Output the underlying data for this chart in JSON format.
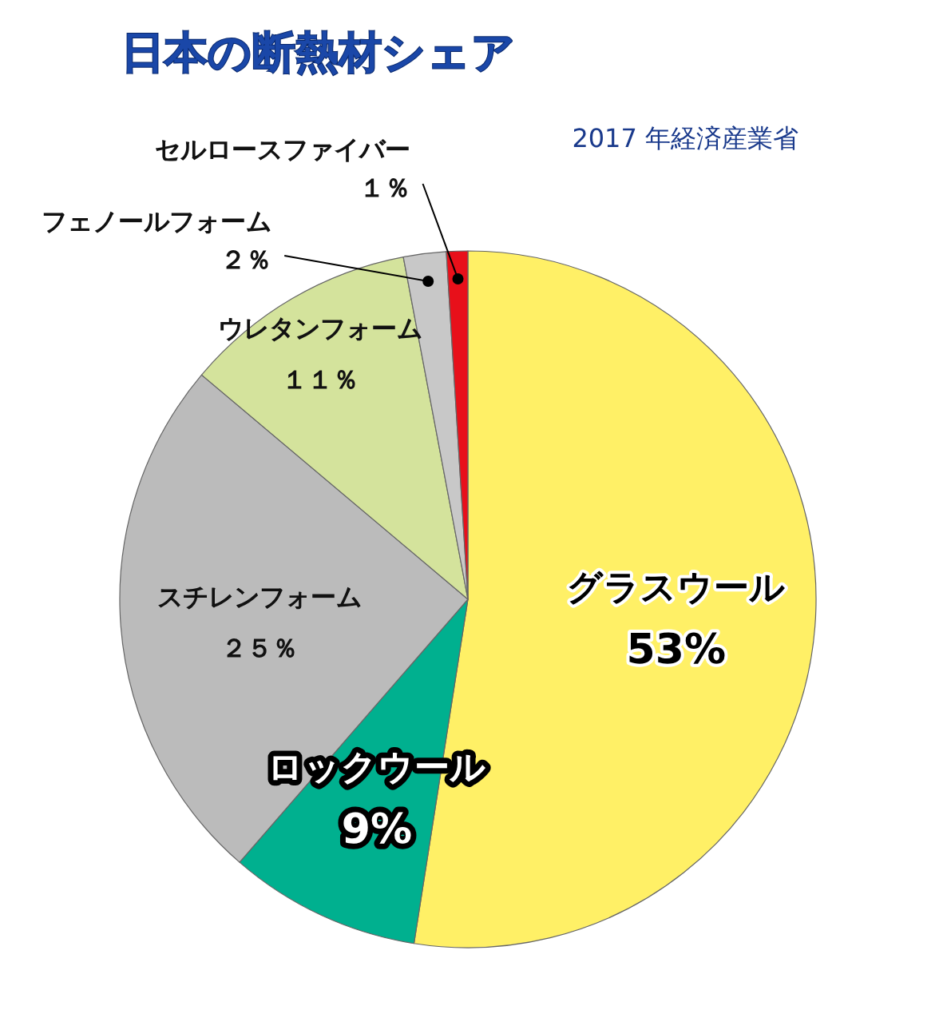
{
  "chart_data": {
    "type": "pie",
    "title": "日本の断熱材シェア",
    "annotations": [
      "2017 年経済産業省"
    ],
    "categories": [
      "グラスウール",
      "ロックウール",
      "スチレンフォーム",
      "ウレタンフォーム",
      "フェノールフォーム",
      "セルロースファイバー"
    ],
    "values": [
      53,
      9,
      25,
      11,
      2,
      1
    ],
    "value_labels": [
      "53%",
      "9%",
      "２５％",
      "１１％",
      "２％",
      "１％"
    ],
    "colors": [
      "#fff066",
      "#00b08f",
      "#bbbbbb",
      "#d4e39c",
      "#c8c8c8",
      "#e8101a"
    ]
  }
}
